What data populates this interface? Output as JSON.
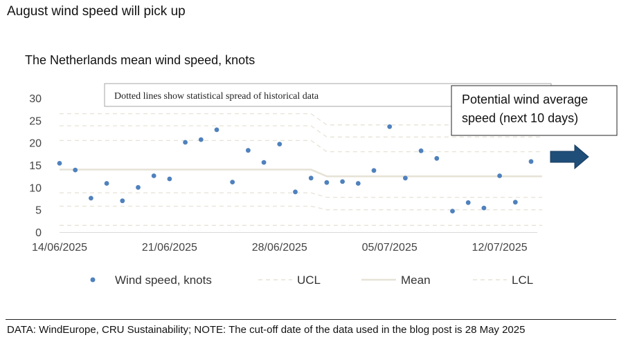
{
  "header": {
    "title": "August wind speed will pick up"
  },
  "footer": {
    "text": "DATA: WindEurope, CRU Sustainability; NOTE: The cut-off date of the data used in the blog post is 28 May 2025"
  },
  "chart_data": {
    "type": "scatter",
    "title": "The Netherlands mean wind speed, knots",
    "xlabel": "",
    "ylabel": "",
    "ylim": [
      0,
      30
    ],
    "yticks": [
      "0",
      "5",
      "10",
      "15",
      "20",
      "25",
      "30"
    ],
    "xticks": [
      {
        "day": 0,
        "label": "14/06/2025"
      },
      {
        "day": 7,
        "label": "21/06/2025"
      },
      {
        "day": 14,
        "label": "28/06/2025"
      },
      {
        "day": 21,
        "label": "05/07/2025"
      },
      {
        "day": 28,
        "label": "12/07/2025"
      }
    ],
    "grid": false,
    "legend_position": "bottom",
    "annotation": "Dotted lines show statistical spread of historical data",
    "callout": [
      "Potential wind average",
      "speed (next 10 days)"
    ],
    "colors": {
      "points": "#4f81bd",
      "mean": "#e6e2d6",
      "limits": "#e6e2d6",
      "arrow": "#1f4e79"
    },
    "series": [
      {
        "name": "Wind speed, knots",
        "kind": "points",
        "x": [
          "14/06/2025",
          "15/06/2025",
          "16/06/2025",
          "17/06/2025",
          "18/06/2025",
          "19/06/2025",
          "20/06/2025",
          "21/06/2025",
          "22/06/2025",
          "23/06/2025",
          "24/06/2025",
          "25/06/2025",
          "26/06/2025",
          "27/06/2025",
          "28/06/2025",
          "29/06/2025",
          "30/06/2025",
          "01/07/2025",
          "02/07/2025",
          "03/07/2025",
          "04/07/2025",
          "05/07/2025",
          "06/07/2025",
          "07/07/2025",
          "08/07/2025",
          "09/07/2025",
          "10/07/2025",
          "11/07/2025",
          "12/07/2025",
          "13/07/2025",
          "14/07/2025",
          "15/07/2025"
        ],
        "y": [
          15.4,
          13.9,
          7.6,
          10.9,
          7.0,
          10.0,
          12.6,
          11.9,
          20.1,
          20.7,
          22.9,
          11.2,
          18.3,
          15.6,
          19.7,
          9.0,
          12.1,
          11.1,
          11.3,
          10.9,
          13.8,
          23.6,
          12.1,
          18.2,
          16.5,
          4.7,
          6.6,
          5.4,
          12.6,
          6.7,
          15.8,
          null
        ]
      },
      {
        "name": "UCL",
        "kind": "upper",
        "levels": [
          {
            "day": 0,
            "values": [
              26.5,
              23.8,
              20.5
            ]
          },
          {
            "day": 16,
            "values": [
              26.5,
              23.8,
              20.5
            ]
          },
          {
            "day": 17,
            "values": [
              24.0,
              21.3,
              18.0
            ]
          },
          {
            "day": 30.7,
            "values": [
              24.0,
              21.3,
              18.0
            ]
          }
        ]
      },
      {
        "name": "Mean",
        "kind": "mean",
        "levels": [
          {
            "day": 0,
            "values": [
              14.0
            ]
          },
          {
            "day": 16,
            "values": [
              14.0
            ]
          },
          {
            "day": 17,
            "values": [
              12.5
            ]
          },
          {
            "day": 30.7,
            "values": [
              12.5
            ]
          }
        ]
      },
      {
        "name": "LCL",
        "kind": "lower",
        "levels": [
          {
            "day": 0,
            "values": [
              8.8,
              5.8,
              1.5
            ]
          },
          {
            "day": 16,
            "values": [
              8.8,
              5.8,
              1.5
            ]
          },
          {
            "day": 17,
            "values": [
              7.8,
              5.0,
              1.5
            ]
          },
          {
            "day": 30.7,
            "values": [
              7.8,
              5.0,
              1.5
            ]
          }
        ]
      }
    ]
  }
}
